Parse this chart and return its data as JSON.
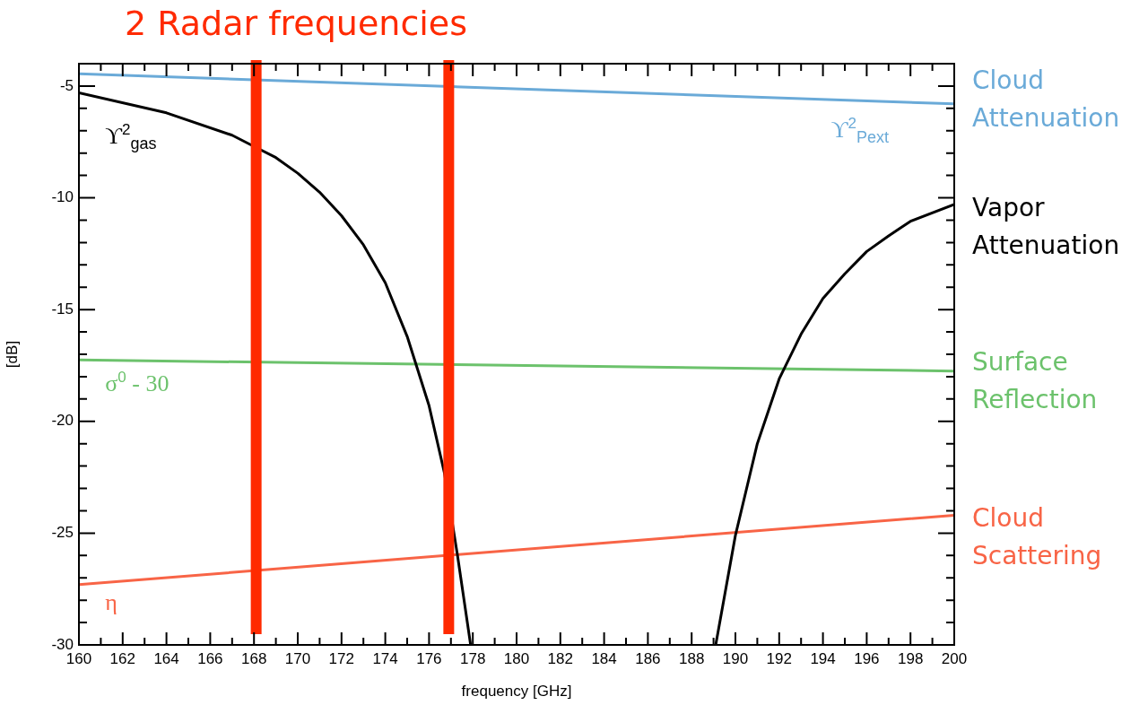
{
  "chart_data": {
    "type": "line",
    "title": "2 Radar frequencies",
    "xlabel": "frequency [GHz]",
    "ylabel": "[dB]",
    "xlim": [
      160,
      200
    ],
    "xticks": [
      160,
      {
        "value": 161,
        "label": null
      },
      162,
      {
        "value": 163,
        "label": null
      },
      164,
      {
        "value": 165,
        "label": null
      },
      166,
      {
        "value": 167,
        "label": null
      },
      168,
      {
        "value": 169,
        "label": null
      },
      170,
      {
        "value": 171,
        "label": null
      },
      172,
      {
        "value": 173,
        "label": null
      },
      174,
      {
        "value": 175,
        "label": null
      },
      176,
      {
        "value": 177,
        "label": null
      },
      178,
      {
        "value": 179,
        "label": null
      },
      180,
      {
        "value": 181,
        "label": null
      },
      182,
      {
        "value": 183,
        "label": null
      },
      184,
      {
        "value": 185,
        "label": null
      },
      186,
      {
        "value": 187,
        "label": null
      },
      188,
      {
        "value": 189,
        "label": null
      },
      190,
      {
        "value": 191,
        "label": null
      },
      192,
      {
        "value": 193,
        "label": null
      },
      194,
      {
        "value": 195,
        "label": null
      },
      196,
      {
        "value": 197,
        "label": null
      },
      198,
      {
        "value": 199,
        "label": null
      },
      200
    ],
    "ylim": [
      -30,
      -4
    ],
    "yticks": [
      -30,
      {
        "value": -29,
        "label": null
      },
      {
        "value": -28,
        "label": null
      },
      {
        "value": -27,
        "label": null
      },
      {
        "value": -26,
        "label": null
      },
      -25,
      {
        "value": -24,
        "label": null
      },
      {
        "value": -23,
        "label": null
      },
      {
        "value": -22,
        "label": null
      },
      {
        "value": -21,
        "label": null
      },
      -20,
      {
        "value": -19,
        "label": null
      },
      {
        "value": -18,
        "label": null
      },
      {
        "value": -17,
        "label": null
      },
      {
        "value": -16,
        "label": null
      },
      -15,
      {
        "value": -14,
        "label": null
      },
      {
        "value": -13,
        "label": null
      },
      {
        "value": -12,
        "label": null
      },
      {
        "value": -11,
        "label": null
      },
      -10,
      {
        "value": -9,
        "label": null
      },
      {
        "value": -8,
        "label": null
      },
      {
        "value": -7,
        "label": null
      },
      {
        "value": -6,
        "label": null
      },
      -5
    ],
    "series": [
      {
        "name": "ϒ$^{2}$$_{Pext}$",
        "color": "#6aaad8",
        "x": [
          160,
          200
        ],
        "values": [
          -4.45,
          -5.8
        ]
      },
      {
        "name": "ϒ$^{2}$$_{gas}$",
        "color": "#000000",
        "x": [
          160,
          164,
          167,
          168,
          169,
          170,
          171,
          172,
          173,
          174,
          175,
          176,
          176.7,
          177.3,
          177.9,
          183,
          189.1,
          190,
          191,
          192,
          193,
          194,
          195,
          196,
          197,
          198,
          200
        ],
        "values": [
          -5.3,
          -6.2,
          -7.2,
          -7.7,
          -8.2,
          -8.9,
          -9.75,
          -10.8,
          -12.1,
          -13.8,
          -16.2,
          -19.3,
          -22.3,
          -26,
          -30,
          null,
          -30,
          -25.1,
          -21,
          -18.1,
          -16.1,
          -14.5,
          -13.4,
          -12.4,
          -11.7,
          -11.05,
          -10.3
        ]
      },
      {
        "name": "σ$^{0}$ - 30",
        "color": "#6cc26c",
        "x": [
          160,
          200
        ],
        "values": [
          -17.25,
          -17.75
        ]
      },
      {
        "name": "η",
        "color": "#f86446",
        "x": [
          160,
          200
        ],
        "values": [
          -27.3,
          -24.2
        ]
      }
    ],
    "ref_lines": [
      {
        "axis": "x",
        "value": 168.1,
        "color": "#ff2a00"
      },
      {
        "axis": "x",
        "value": 176.9,
        "color": "#ff2a00"
      }
    ],
    "annotations": [
      "Cloud Attenuation",
      "Vapor Attenuation",
      "Surface Reflection",
      "Cloud Scattering"
    ],
    "grid": false,
    "legend": false,
    "marker": "none",
    "line_style": "solid"
  }
}
